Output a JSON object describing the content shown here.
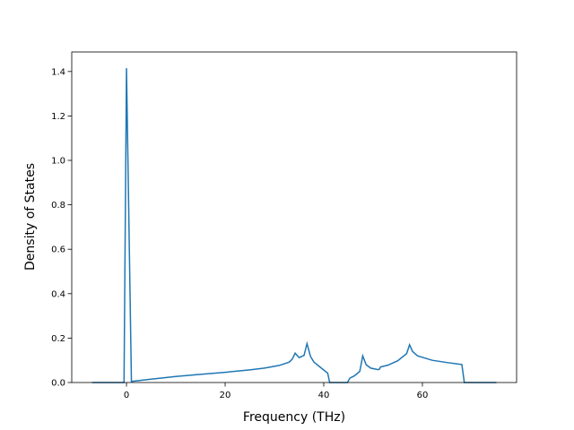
{
  "chart_data": {
    "type": "line",
    "xlabel": "Frequency (THz)",
    "ylabel": "Density of States",
    "x": [
      -7,
      -0.5,
      0,
      1,
      5,
      10,
      15,
      20,
      25,
      28,
      31,
      33,
      33.6,
      34.2,
      35,
      36,
      36.6,
      37.3,
      38,
      39.5,
      40.8,
      41.2,
      44.8,
      45.3,
      46.2,
      47.3,
      47.9,
      48.6,
      49.5,
      51,
      51.3,
      51.5,
      53,
      55,
      56.8,
      57.4,
      58,
      59,
      62,
      65,
      68,
      68.5,
      75
    ],
    "values": [
      0,
      0,
      1.415,
      0.005,
      0.015,
      0.027,
      0.037,
      0.046,
      0.057,
      0.065,
      0.077,
      0.092,
      0.105,
      0.132,
      0.112,
      0.122,
      0.175,
      0.118,
      0.092,
      0.065,
      0.042,
      0,
      0,
      0.02,
      0.03,
      0.05,
      0.12,
      0.08,
      0.065,
      0.058,
      0.06,
      0.07,
      0.078,
      0.098,
      0.13,
      0.17,
      0.14,
      0.12,
      0.1,
      0.09,
      0.081,
      0,
      0
    ],
    "color": "#1f77b4",
    "xlim": [
      -11.1,
      79.1
    ],
    "xticks": [
      0,
      20,
      40,
      60
    ],
    "ylim": [
      0,
      1.488
    ],
    "yticks": [
      {
        "value": 0,
        "label": "0.0"
      },
      0.2,
      0.4,
      0.6,
      0.8,
      {
        "value": 1,
        "label": "1.0"
      },
      1.2,
      1.4
    ]
  }
}
